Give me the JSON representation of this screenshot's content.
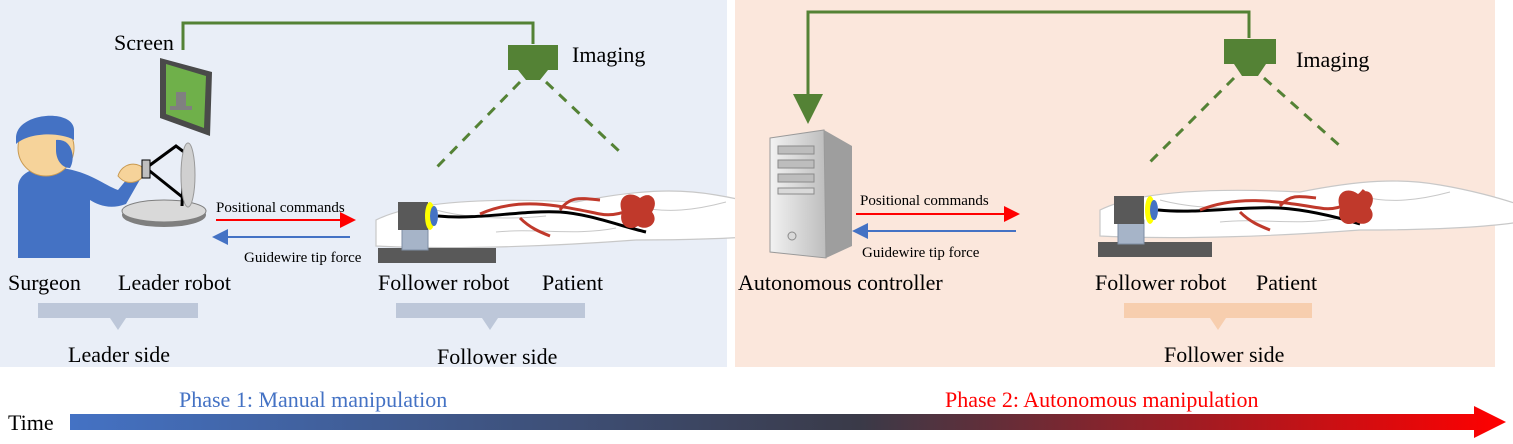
{
  "panel_left": {
    "labels": {
      "screen": "Screen",
      "imaging": "Imaging",
      "positional_commands": "Positional commands",
      "guidewire_tip_force": "Guidewire tip force",
      "surgeon": "Surgeon",
      "leader_robot": "Leader robot",
      "follower_robot": "Follower robot",
      "patient": "Patient",
      "leader_side": "Leader side",
      "follower_side": "Follower side"
    },
    "colors": {
      "background": "#e9eef7",
      "brace": "#a9b6cc"
    }
  },
  "panel_right": {
    "labels": {
      "imaging": "Imaging",
      "positional_commands": "Positional commands",
      "guidewire_tip_force": "Guidewire tip force",
      "autonomous_controller": "Autonomous controller",
      "follower_robot": "Follower robot",
      "patient": "Patient",
      "follower_side": "Follower side"
    },
    "colors": {
      "background": "#fbe7dc",
      "brace": "#f6c9a6"
    }
  },
  "timeline": {
    "time_label": "Time",
    "phase1": "Phase 1: Manual manipulation",
    "phase2": "Phase 2: Autonomous manipulation",
    "colors": {
      "start": "#4472c4",
      "end": "#ff0000",
      "phase1": "#4472c4",
      "phase2": "#ff0000"
    }
  },
  "colors": {
    "imaging_green": "#548235",
    "command_arrow": "#ff0000",
    "force_arrow": "#4472c4",
    "surgeon_blue": "#4472c4",
    "vessel_red": "#c0392b",
    "robot_gray": "#808080",
    "robot_yellow": "#ffff00"
  }
}
